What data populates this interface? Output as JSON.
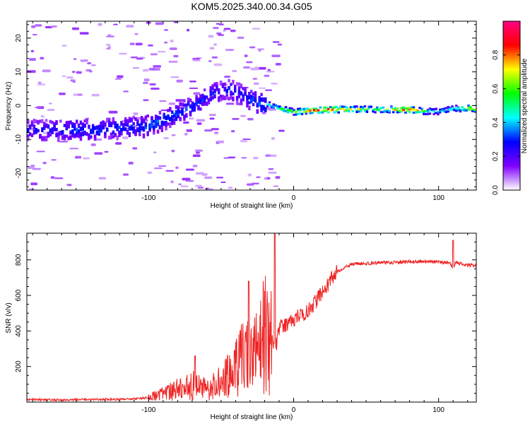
{
  "figure_title": "KOM5.2025.340.00.34.G05",
  "chart_data": [
    {
      "type": "heatmap",
      "panel": "spectrogram",
      "title": "KOM5.2025.340.00.34.G05",
      "xlabel": "Height of straight line (km)",
      "ylabel": "Frequency (Hz)",
      "xlim": [
        -184,
        126
      ],
      "ylim": [
        -25,
        25
      ],
      "xticks": [
        -100,
        0,
        100
      ],
      "xtick_labels": [
        "-100",
        "0",
        "100"
      ],
      "yticks": [
        -20,
        -10,
        0,
        10,
        20
      ],
      "ytick_labels": [
        "-20",
        "-10",
        "0",
        "10",
        "20"
      ],
      "colorbar": {
        "label": "Normalized spectral amplitude",
        "range": [
          0,
          1
        ],
        "ticks": [
          0.0,
          0.2,
          0.4,
          0.6,
          0.8
        ],
        "tick_labels": [
          "0.0",
          "0.2",
          "0.4",
          "0.6",
          "0.8"
        ],
        "colors": [
          "#ffffff",
          "#8000ff",
          "#0000ff",
          "#00ffff",
          "#00ff00",
          "#ffff00",
          "#ff0000",
          "#ff0080"
        ]
      },
      "ridge": {
        "description": "dominant frequency trace vs height",
        "x": [
          -184,
          -160,
          -140,
          -120,
          -105,
          -95,
          -85,
          -75,
          -65,
          -60,
          -55,
          -50,
          -45,
          -40,
          -35,
          -30,
          -25,
          -20,
          -10,
          0,
          20,
          40,
          60,
          80,
          90,
          100,
          110,
          126
        ],
        "y": [
          -7,
          -7,
          -7,
          -6.5,
          -6,
          -5,
          -3,
          -1,
          1,
          3,
          4,
          4.5,
          5,
          4,
          3,
          2,
          1,
          0.5,
          -1,
          -2,
          -1.3,
          -1.2,
          -1.2,
          -1.3,
          -1.8,
          -1.8,
          -1,
          -0.8
        ],
        "amplitude": [
          0.25,
          0.3,
          0.32,
          0.3,
          0.33,
          0.35,
          0.33,
          0.3,
          0.3,
          0.28,
          0.28,
          0.26,
          0.28,
          0.26,
          0.28,
          0.3,
          0.35,
          0.4,
          0.55,
          0.6,
          0.95,
          0.7,
          0.6,
          0.95,
          0.5,
          0.45,
          0.45,
          0.9
        ]
      }
    },
    {
      "type": "line",
      "panel": "snr",
      "xlabel": "Height of straight line (km)",
      "ylabel": "SNR (v/v)",
      "xlim": [
        -184,
        126
      ],
      "ylim": [
        0,
        950
      ],
      "xticks": [
        -100,
        0,
        100
      ],
      "xtick_labels": [
        "-100",
        "0",
        "100"
      ],
      "yticks": [
        200,
        400,
        600,
        800
      ],
      "ytick_labels": [
        "200",
        "400",
        "600",
        "800"
      ],
      "series": [
        {
          "name": "SNR",
          "color": "#ee2222",
          "x": [
            -184,
            -160,
            -140,
            -120,
            -110,
            -100,
            -90,
            -80,
            -75,
            -70,
            -65,
            -60,
            -50,
            -45,
            -40,
            -35,
            -30,
            -25,
            -20,
            -15,
            -12,
            -10,
            -5,
            0,
            5,
            10,
            15,
            20,
            25,
            30,
            35,
            40,
            50,
            60,
            70,
            80,
            90,
            100,
            108,
            110,
            112,
            115,
            118,
            126
          ],
          "y": [
            15,
            12,
            15,
            15,
            18,
            25,
            45,
            70,
            80,
            95,
            90,
            70,
            110,
            150,
            200,
            240,
            260,
            300,
            380,
            350,
            320,
            420,
            430,
            460,
            490,
            520,
            560,
            620,
            680,
            730,
            760,
            775,
            780,
            785,
            785,
            790,
            790,
            790,
            780,
            750,
            790,
            780,
            770,
            770
          ],
          "spikes": [
            {
              "x": -68,
              "y": 260
            },
            {
              "x": -31,
              "y": 680
            },
            {
              "x": -13,
              "y": 950
            },
            {
              "x": 110,
              "y": 910
            }
          ]
        }
      ]
    }
  ]
}
